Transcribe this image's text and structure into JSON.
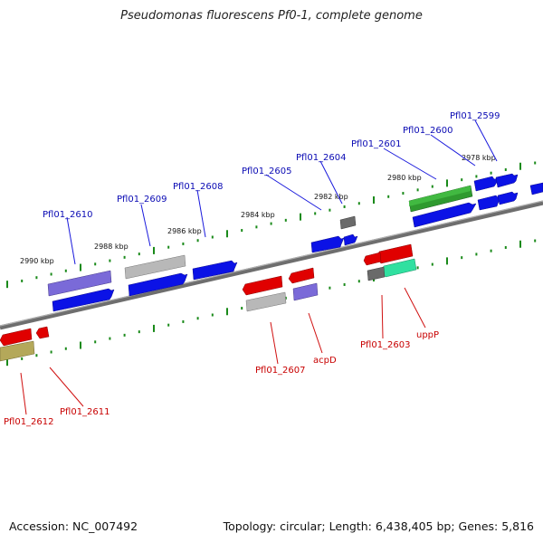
{
  "title": "Pseudomonas fluorescens Pf0-1, complete genome",
  "footer": {
    "accession": "Accession: NC_007492",
    "summary": "Topology: circular; Length: 6,438,405 bp; Genes: 5,816"
  },
  "colors": {
    "label_forward": "#0a0ab4",
    "label_reverse": "#c80000",
    "tick": "#1a8a1a",
    "backbone": "#7a7a7a"
  },
  "scale_labels": [
    "2978 kbp",
    "2980 kbp",
    "2982 kbp",
    "2984 kbp",
    "2986 kbp",
    "2988 kbp",
    "2990 kbp"
  ],
  "forward_labels": [
    "Pfl01_2599",
    "Pfl01_2600",
    "Pfl01_2601",
    "Pfl01_2604",
    "Pfl01_2605",
    "Pfl01_2608",
    "Pfl01_2609",
    "Pfl01_2610"
  ],
  "reverse_labels": [
    "uppP",
    "Pfl01_2603",
    "acpD",
    "Pfl01_2607",
    "Pfl01_2611",
    "Pfl01_2612"
  ]
}
